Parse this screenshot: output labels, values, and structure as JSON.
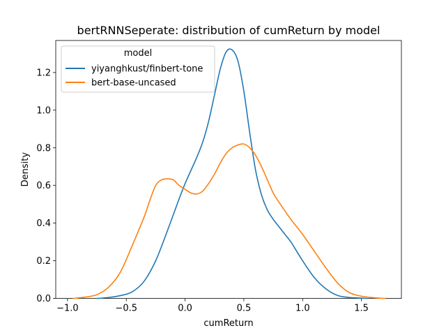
{
  "chart_data": {
    "type": "line",
    "title": "bertRNNSeperate: distribution of cumReturn by model",
    "xlabel": "cumReturn",
    "ylabel": "Density",
    "xlim": [
      -1.1,
      1.84
    ],
    "ylim": [
      0,
      1.37
    ],
    "xticks": [
      -1.0,
      -0.5,
      0.0,
      0.5,
      1.0,
      1.5
    ],
    "xtick_labels": [
      "−1.0",
      "−0.5",
      "0.0",
      "0.5",
      "1.0",
      "1.5"
    ],
    "yticks": [
      0.0,
      0.2,
      0.4,
      0.6,
      0.8,
      1.0,
      1.2
    ],
    "ytick_labels": [
      "0.0",
      "0.2",
      "0.4",
      "0.6",
      "0.8",
      "1.0",
      "1.2"
    ],
    "grid": false,
    "legend": {
      "title": "model",
      "placement": "upper-left"
    },
    "series": [
      {
        "name": "yiyanghkust/finbert-tone",
        "color": "#1f77b4",
        "x": [
          -0.75,
          -0.65,
          -0.55,
          -0.45,
          -0.35,
          -0.25,
          -0.15,
          -0.05,
          0.0,
          0.05,
          0.1,
          0.15,
          0.2,
          0.25,
          0.3,
          0.35,
          0.4,
          0.45,
          0.5,
          0.55,
          0.6,
          0.65,
          0.7,
          0.75,
          0.8,
          0.85,
          0.9,
          0.95,
          1.0,
          1.1,
          1.2,
          1.3,
          1.4,
          1.5,
          1.55
        ],
        "y": [
          0.0,
          0.005,
          0.015,
          0.035,
          0.09,
          0.2,
          0.36,
          0.53,
          0.61,
          0.68,
          0.75,
          0.83,
          0.94,
          1.08,
          1.22,
          1.31,
          1.32,
          1.26,
          1.1,
          0.88,
          0.68,
          0.55,
          0.47,
          0.42,
          0.38,
          0.34,
          0.3,
          0.25,
          0.2,
          0.11,
          0.05,
          0.015,
          0.005,
          0.002,
          0.0
        ]
      },
      {
        "name": "bert-base-uncased",
        "color": "#ff7f0e",
        "x": [
          -0.95,
          -0.85,
          -0.75,
          -0.65,
          -0.55,
          -0.45,
          -0.35,
          -0.3,
          -0.25,
          -0.2,
          -0.15,
          -0.1,
          -0.05,
          0.0,
          0.05,
          0.1,
          0.15,
          0.2,
          0.25,
          0.3,
          0.35,
          0.4,
          0.45,
          0.5,
          0.55,
          0.6,
          0.65,
          0.7,
          0.75,
          0.8,
          0.9,
          1.0,
          1.1,
          1.2,
          1.3,
          1.4,
          1.5,
          1.6,
          1.7
        ],
        "y": [
          0.0,
          0.007,
          0.02,
          0.06,
          0.14,
          0.28,
          0.43,
          0.52,
          0.6,
          0.63,
          0.635,
          0.63,
          0.6,
          0.58,
          0.56,
          0.555,
          0.57,
          0.61,
          0.66,
          0.72,
          0.77,
          0.8,
          0.815,
          0.82,
          0.8,
          0.76,
          0.7,
          0.63,
          0.56,
          0.51,
          0.42,
          0.34,
          0.25,
          0.16,
          0.08,
          0.03,
          0.012,
          0.004,
          0.0
        ]
      }
    ]
  }
}
